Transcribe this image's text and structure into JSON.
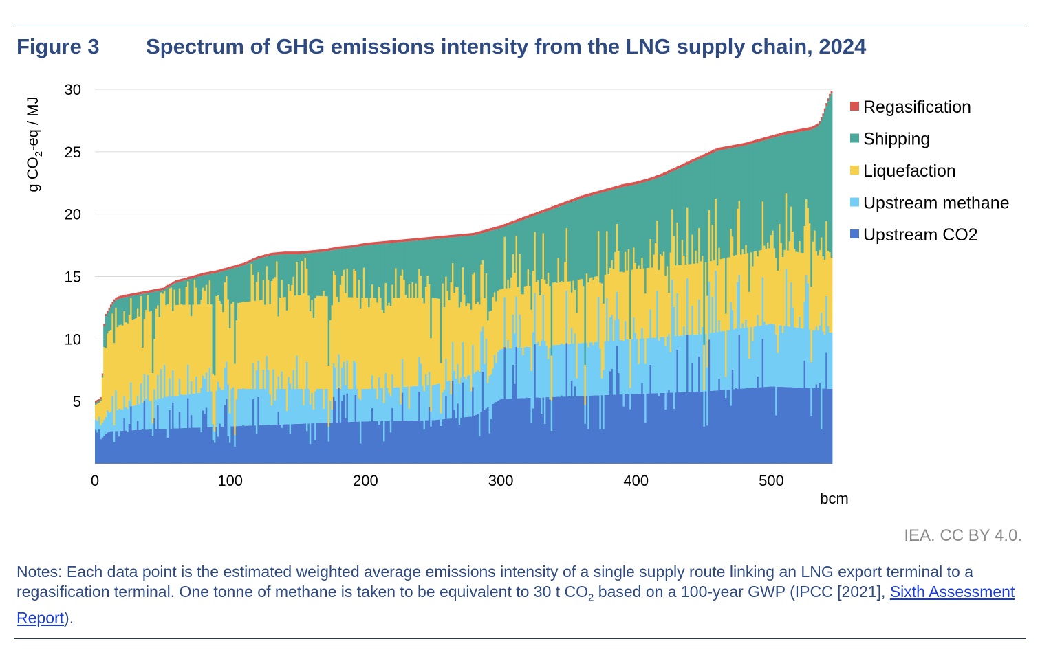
{
  "figure": {
    "label": "Figure 3",
    "title": "Spectrum of GHG emissions intensity from the LNG supply chain, 2024"
  },
  "credit": "IEA. CC BY 4.0.",
  "notes": {
    "part1": "Notes: Each data point is the estimated weighted average emissions intensity of a single supply route linking an LNG export terminal to a regasification terminal. One tonne of methane is taken to be equivalent to 30 t CO",
    "sub1": "2",
    "part2": " based on a 100-year GWP (IPCC [2021], ",
    "link_text": "Sixth Assessment Report",
    "part3": ")."
  },
  "chart_data": {
    "type": "stacked-area",
    "ylabel_prefix": "g CO",
    "ylabel_sub": "2",
    "ylabel_suffix": "-eq / MJ",
    "xlabel": "bcm",
    "xlim": [
      0,
      545
    ],
    "ylim": [
      0,
      30
    ],
    "x_ticks": [
      "0",
      "100",
      "200",
      "300",
      "400",
      "500"
    ],
    "y_ticks": [
      "5",
      "10",
      "15",
      "20",
      "25",
      "30"
    ],
    "grid": "horizontal",
    "legend_position": "right",
    "legend": [
      {
        "name": "Regasification",
        "color": "#d9534f"
      },
      {
        "name": "Shipping",
        "color": "#4aa99a"
      },
      {
        "name": "Liquefaction",
        "color": "#f5d04c"
      },
      {
        "name": "Upstream methane",
        "color": "#74cdf5"
      },
      {
        "name": "Upstream CO2",
        "color": "#4a78cf"
      }
    ],
    "stack_order": [
      "Upstream CO2",
      "Upstream methane",
      "Liquefaction",
      "Shipping",
      "Regasification"
    ],
    "total_intensity_curve": {
      "x": [
        0,
        3,
        5,
        7,
        9,
        12,
        15,
        20,
        25,
        30,
        40,
        50,
        60,
        70,
        80,
        90,
        100,
        110,
        120,
        130,
        140,
        150,
        160,
        170,
        180,
        190,
        200,
        210,
        220,
        230,
        240,
        250,
        260,
        270,
        280,
        290,
        300,
        310,
        320,
        330,
        340,
        350,
        360,
        370,
        380,
        390,
        400,
        410,
        420,
        430,
        440,
        450,
        460,
        470,
        480,
        490,
        500,
        510,
        520,
        530,
        535,
        538,
        541,
        543,
        545
      ],
      "y": [
        5.0,
        5.2,
        5.4,
        11.8,
        12.2,
        12.8,
        13.3,
        13.5,
        13.6,
        13.7,
        13.9,
        14.1,
        14.7,
        15.0,
        15.3,
        15.5,
        15.8,
        16.1,
        16.6,
        16.9,
        17.0,
        17.0,
        17.1,
        17.2,
        17.4,
        17.5,
        17.7,
        17.8,
        17.9,
        18.0,
        18.1,
        18.2,
        18.3,
        18.4,
        18.5,
        18.8,
        19.1,
        19.5,
        19.9,
        20.3,
        20.7,
        21.1,
        21.5,
        21.8,
        22.1,
        22.4,
        22.6,
        22.9,
        23.3,
        23.8,
        24.3,
        24.8,
        25.3,
        25.5,
        25.7,
        26.0,
        26.3,
        26.6,
        26.8,
        27.0,
        27.3,
        28.0,
        29.0,
        29.6,
        30.0
      ]
    },
    "component_breakpoints": {
      "x": [
        0,
        10,
        50,
        100,
        150,
        200,
        250,
        280,
        300,
        350,
        400,
        450,
        500,
        545
      ],
      "upstream_co2": [
        1.5,
        2.6,
        2.8,
        3.0,
        3.2,
        3.4,
        3.5,
        3.8,
        5.2,
        5.4,
        5.6,
        5.8,
        6.2,
        6.0
      ],
      "upstream_methane": [
        0.8,
        1.5,
        2.5,
        3.0,
        2.8,
        2.6,
        2.8,
        3.4,
        4.0,
        4.2,
        4.4,
        4.6,
        5.0,
        4.5
      ],
      "liquefaction": [
        1.5,
        6.5,
        7.4,
        6.8,
        7.5,
        7.3,
        7.0,
        5.6,
        4.8,
        5.0,
        5.6,
        5.7,
        6.1,
        6.0
      ],
      "regasification": [
        0.15,
        0.2,
        0.2,
        0.2,
        0.2,
        0.2,
        0.2,
        0.2,
        0.22,
        0.22,
        0.22,
        0.22,
        0.22,
        0.22
      ]
    }
  }
}
